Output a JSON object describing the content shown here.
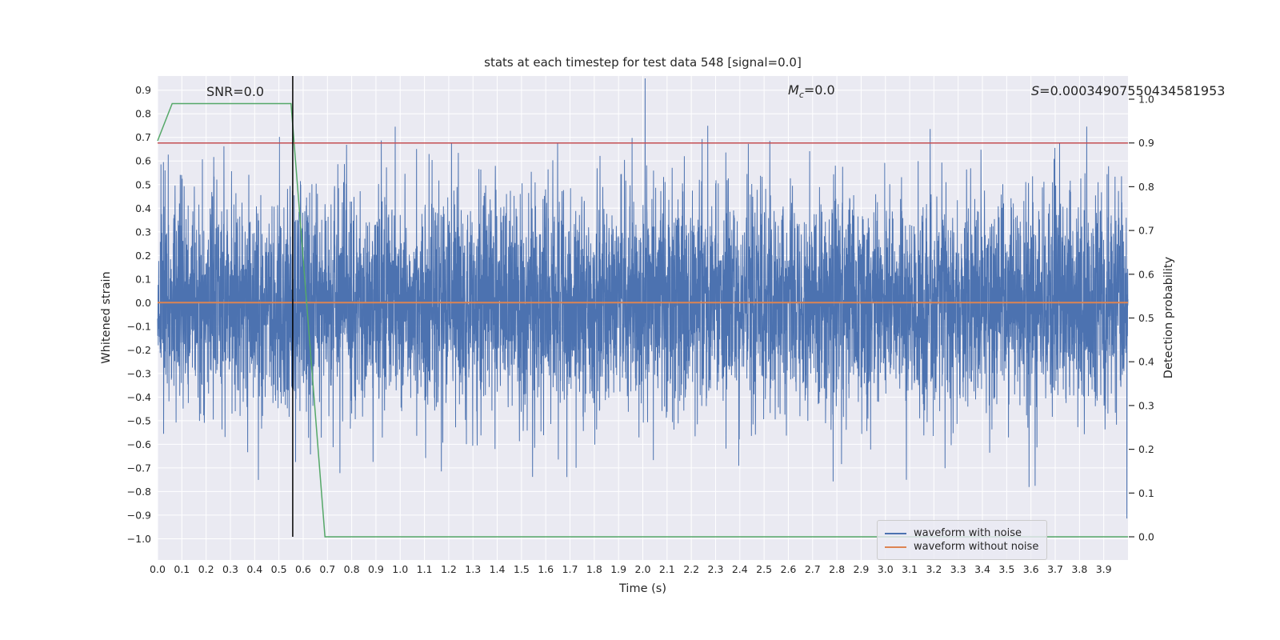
{
  "title": "stats at each timestep for test data 548 [signal=0.0]",
  "annotations": {
    "snr": "SNR=0.0",
    "mc_var": "M",
    "mc_sub": "c",
    "mc_rest": "=0.0",
    "s_var": "S",
    "s_rest": "=0.00034907550434581953"
  },
  "legend": {
    "items": [
      {
        "label": "waveform with noise",
        "color": "#4c72b0"
      },
      {
        "label": "waveform without noise",
        "color": "#dd8452"
      }
    ]
  },
  "colors": {
    "plot_bg": "#eaeaf2",
    "grid": "#ffffff",
    "tick_text": "#262626",
    "tick_mark": "#262626"
  },
  "chart_data": {
    "type": "line",
    "title": "stats at each timestep for test data 548 [signal=0.0]",
    "xlabel": "Time (s)",
    "ylabel_left": "Whitened strain",
    "ylabel_right": "Detection probability",
    "xlim": [
      0.0,
      4.0
    ],
    "ylim_left": [
      -1.09,
      0.96
    ],
    "ylim_right": [
      -0.053,
      1.053
    ],
    "grid": true,
    "legend_position": "lower right",
    "x_tick_labels": [
      "0.0",
      "0.1",
      "0.2",
      "0.3",
      "0.4",
      "0.5",
      "0.6",
      "0.7",
      "0.8",
      "0.9",
      "1.0",
      "1.1",
      "1.2",
      "1.3",
      "1.4",
      "1.5",
      "1.6",
      "1.7",
      "1.8",
      "1.9",
      "2.0",
      "2.1",
      "2.2",
      "2.3",
      "2.4",
      "2.5",
      "2.6",
      "2.7",
      "2.8",
      "2.9",
      "3.0",
      "3.1",
      "3.2",
      "3.3",
      "3.4",
      "3.5",
      "3.6",
      "3.7",
      "3.8",
      "3.9"
    ],
    "y_tick_labels_left": [
      "0.9",
      "0.8",
      "0.7",
      "0.6",
      "0.5",
      "0.4",
      "0.3",
      "0.2",
      "0.1",
      "0.0",
      "−0.1",
      "−0.2",
      "−0.3",
      "−0.4",
      "−0.5",
      "−0.6",
      "−0.7",
      "−0.8",
      "−0.9",
      "−1.0"
    ],
    "y_tick_labels_right": [
      "1.0",
      "0.9",
      "0.8",
      "0.7",
      "0.6",
      "0.5",
      "0.4",
      "0.3",
      "0.2",
      "0.1",
      "0.0"
    ],
    "series": [
      {
        "name": "waveform with noise",
        "axis": "left",
        "color": "#4c72b0",
        "style": "noise",
        "x_start": 0.0,
        "x_end": 4.0,
        "noise": {
          "seed": 548,
          "n": 6000,
          "mean": 0.0,
          "std": 0.23,
          "clip": [
            -1.02,
            0.95
          ]
        },
        "width": 1
      },
      {
        "name": "waveform without noise",
        "axis": "left",
        "color": "#dd8452",
        "style": "line",
        "points": [
          [
            0.0,
            0.0
          ],
          [
            4.0,
            0.0
          ]
        ],
        "width": 2
      },
      {
        "name": "detection probability",
        "axis": "right",
        "color": "#55a868",
        "style": "line",
        "points": [
          [
            0.0,
            0.905
          ],
          [
            0.06,
            0.99
          ],
          [
            0.55,
            0.99
          ],
          [
            0.69,
            0.0
          ],
          [
            4.0,
            0.0
          ]
        ],
        "width": 1.5
      },
      {
        "name": "detection threshold 0.9",
        "axis": "right",
        "color": "#c44e52",
        "style": "hline",
        "y": 0.9,
        "width": 1.5
      },
      {
        "name": "event time marker",
        "axis": "right",
        "color": "#000000",
        "style": "vline",
        "x": 0.557,
        "y_from": 0.0,
        "y_to": 1.053,
        "width": 1.5
      }
    ]
  }
}
